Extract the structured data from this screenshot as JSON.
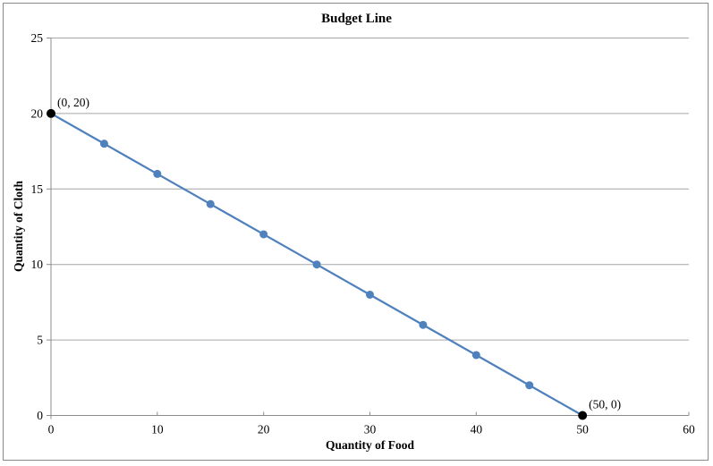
{
  "chart_data": {
    "type": "line",
    "title": "Budget Line",
    "xlabel": "Quantity of Food",
    "ylabel": "Quantity of Cloth",
    "xlim": [
      0,
      60
    ],
    "ylim": [
      0,
      25
    ],
    "xticks": [
      0,
      10,
      20,
      30,
      40,
      50,
      60
    ],
    "yticks": [
      0,
      5,
      10,
      15,
      20,
      25
    ],
    "grid": "horizontal-major",
    "legend": "none",
    "series": [
      {
        "name": "Budget Line",
        "line_color": "#4f81bd",
        "marker_color": "#4f81bd",
        "line_width": 2.25,
        "points": [
          {
            "x": 0,
            "y": 20,
            "marker_color": "#000000"
          },
          {
            "x": 5,
            "y": 18
          },
          {
            "x": 10,
            "y": 16
          },
          {
            "x": 15,
            "y": 14
          },
          {
            "x": 20,
            "y": 12
          },
          {
            "x": 25,
            "y": 10
          },
          {
            "x": 30,
            "y": 8
          },
          {
            "x": 35,
            "y": 6
          },
          {
            "x": 40,
            "y": 4
          },
          {
            "x": 45,
            "y": 2
          },
          {
            "x": 50,
            "y": 0,
            "marker_color": "#000000"
          }
        ]
      }
    ],
    "annotations": [
      {
        "text": "(0, 20)",
        "x": 0,
        "y": 20
      },
      {
        "text": "(50, 0)",
        "x": 50,
        "y": 0
      }
    ],
    "colors": {
      "gridline": "#a6a6a6",
      "axis": "#8c8c8c",
      "frame_border": "#8a8a8a",
      "text": "#000000"
    }
  }
}
